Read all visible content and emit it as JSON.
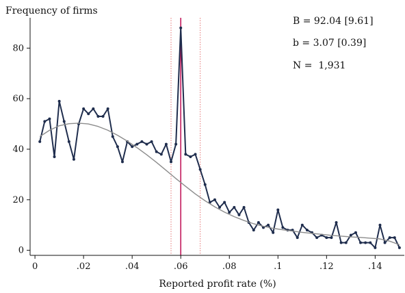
{
  "chart_data": {
    "type": "line",
    "ylabel": "Frequency of firms",
    "xlabel": "Reported profit rate (%)",
    "xlim": [
      -0.002,
      0.152
    ],
    "ylim": [
      -2,
      92
    ],
    "x_ticks": [
      0,
      0.02,
      0.04,
      0.06,
      0.08,
      0.1,
      0.12,
      0.14
    ],
    "x_tick_labels": [
      "0",
      ".02",
      ".04",
      ".06",
      ".08",
      ".1",
      ".12",
      ".14"
    ],
    "y_ticks": [
      0,
      20,
      40,
      60,
      80
    ],
    "y_tick_labels": [
      "0",
      "20",
      "40",
      "60",
      "80"
    ],
    "annotations": [
      "B = 92.04 [9.61]",
      "b = 3.07 [0.39]",
      "N =  1,931"
    ],
    "reference_lines": [
      {
        "x": 0.06,
        "style": "solid",
        "color": "#c2185b"
      },
      {
        "x": 0.056,
        "style": "dotted",
        "color": "#e57373"
      },
      {
        "x": 0.068,
        "style": "dotted",
        "color": "#e57373"
      }
    ],
    "series": [
      {
        "color": "#1f2d4d",
        "markers": true,
        "x": [
          0.002,
          0.004,
          0.006,
          0.008,
          0.01,
          0.012,
          0.014,
          0.016,
          0.018,
          0.02,
          0.022,
          0.024,
          0.026,
          0.028,
          0.03,
          0.032,
          0.034,
          0.036,
          0.038,
          0.04,
          0.042,
          0.044,
          0.046,
          0.048,
          0.05,
          0.052,
          0.054,
          0.056,
          0.058,
          0.06,
          0.062,
          0.064,
          0.066,
          0.068,
          0.07,
          0.072,
          0.074,
          0.076,
          0.078,
          0.08,
          0.082,
          0.084,
          0.086,
          0.088,
          0.09,
          0.092,
          0.094,
          0.096,
          0.098,
          0.1,
          0.102,
          0.104,
          0.106,
          0.108,
          0.11,
          0.112,
          0.114,
          0.116,
          0.118,
          0.12,
          0.122,
          0.124,
          0.126,
          0.128,
          0.13,
          0.132,
          0.134,
          0.136,
          0.138,
          0.14,
          0.142,
          0.144,
          0.146,
          0.148,
          0.15
        ],
        "y": [
          43,
          51,
          52,
          37,
          59,
          51,
          43,
          36,
          50,
          56,
          54,
          56,
          53,
          53,
          56,
          45,
          41,
          35,
          43,
          41,
          42,
          43,
          42,
          43,
          39,
          38,
          42,
          35,
          42,
          88,
          38,
          37,
          38,
          32,
          26,
          19,
          20,
          17,
          19,
          15,
          17,
          14,
          17,
          11,
          8,
          11,
          9,
          10,
          7,
          16,
          9,
          8,
          8,
          5,
          10,
          8,
          7,
          5,
          6,
          5,
          5,
          11,
          3,
          3,
          6,
          7,
          3,
          3,
          3,
          1,
          10,
          3,
          5,
          5,
          1
        ]
      },
      {
        "color": "#8c8c8c",
        "markers": false,
        "x": [
          0.002,
          0.006,
          0.01,
          0.014,
          0.018,
          0.022,
          0.026,
          0.03,
          0.034,
          0.038,
          0.042,
          0.046,
          0.05,
          0.054,
          0.058,
          0.062,
          0.066,
          0.07,
          0.074,
          0.078,
          0.082,
          0.086,
          0.09,
          0.094,
          0.098,
          0.102,
          0.106,
          0.11,
          0.114,
          0.118,
          0.122,
          0.126,
          0.13,
          0.134,
          0.138,
          0.142,
          0.146,
          0.15
        ],
        "y": [
          45,
          47.5,
          49.3,
          50.1,
          50.3,
          50,
          49,
          47.5,
          45.5,
          43.2,
          40.6,
          37.8,
          34.8,
          31.6,
          28.4,
          25.3,
          22.3,
          19.6,
          17.2,
          15.1,
          13.3,
          11.8,
          10.5,
          9.5,
          8.7,
          8.1,
          7.6,
          7.1,
          6.7,
          6.3,
          5.9,
          5.6,
          5.3,
          5.1,
          4.8,
          4.5,
          3.6,
          2.2
        ]
      }
    ]
  }
}
